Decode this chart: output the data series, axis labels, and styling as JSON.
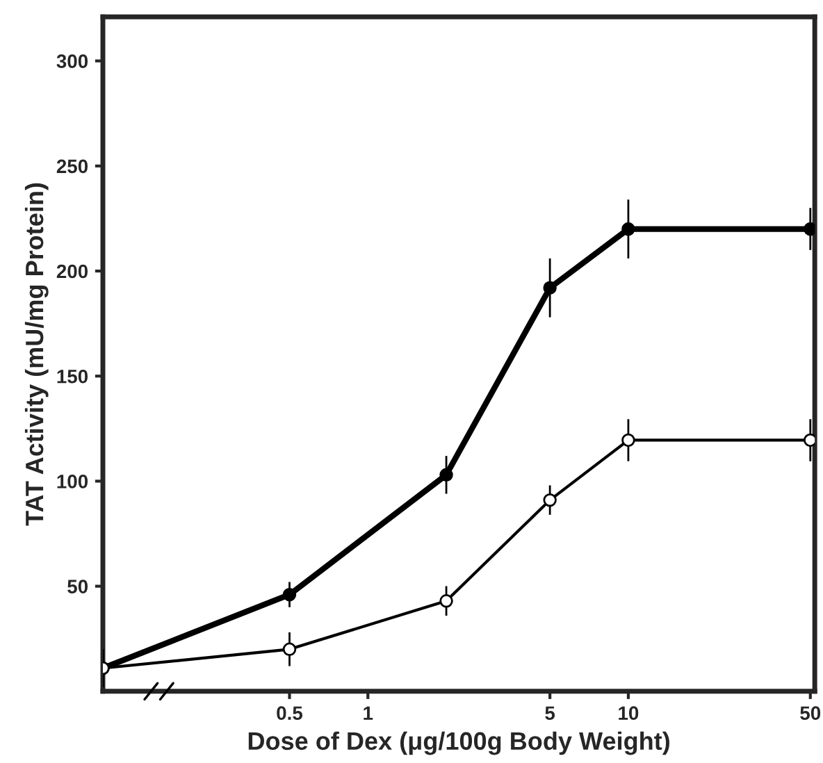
{
  "chart_data": {
    "type": "line",
    "xlabel": "Dose of Dex (μg/100g Body Weight)",
    "ylabel": "TAT Activity (mU/mg Protein)",
    "log": "x",
    "xlim": [
      0.096,
      52
    ],
    "xticks": [
      0.5,
      1,
      5,
      10,
      50
    ],
    "ylim": [
      0,
      321
    ],
    "yticks": [
      50,
      100,
      150,
      200,
      250,
      300
    ],
    "x": [
      0.096,
      0.5,
      2,
      5,
      10,
      50
    ],
    "marker": "circle",
    "grid": false,
    "legend": false,
    "series": [
      {
        "color": "#000000",
        "values": [
          11,
          46,
          103,
          192,
          220,
          220
        ],
        "errors": [
          9,
          6,
          9,
          14,
          14,
          10
        ]
      },
      {
        "color": "#000000",
        "values": [
          11,
          20,
          43,
          91,
          119.5,
          119.5
        ],
        "errors": [
          9,
          8,
          7,
          7,
          10,
          10
        ]
      }
    ]
  }
}
